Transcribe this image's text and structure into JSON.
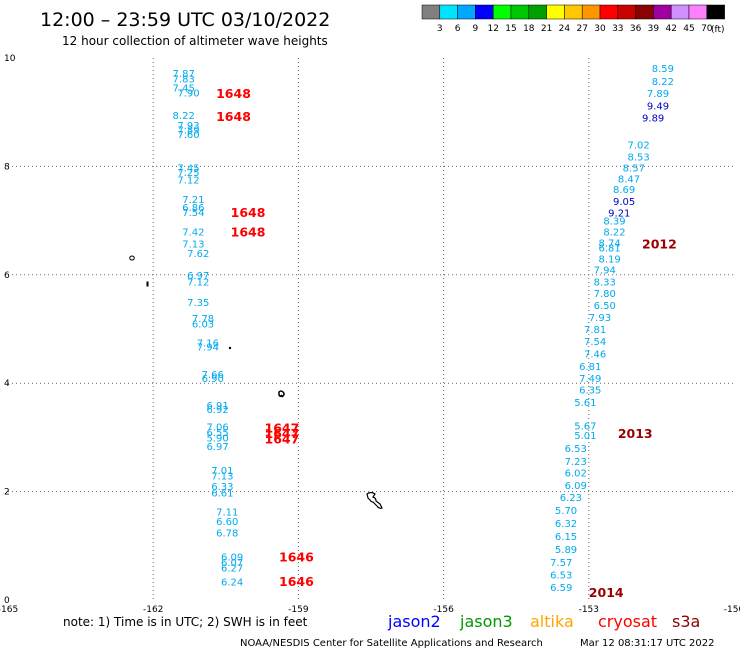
{
  "header": {
    "title": "12:00 – 23:59 UTC 03/10/2022",
    "subtitle": "12 hour collection of altimeter wave heights"
  },
  "colorbar": {
    "unit": "(ft)",
    "ticks": [
      "3",
      "6",
      "9",
      "12",
      "15",
      "18",
      "21",
      "24",
      "27",
      "30",
      "33",
      "36",
      "39",
      "42",
      "45",
      "70"
    ],
    "colors": [
      "#808080",
      "#00e5ff",
      "#00a8ff",
      "#0000ff",
      "#00ff00",
      "#00c800",
      "#00a000",
      "#ffff00",
      "#ffc800",
      "#ff9600",
      "#ff0000",
      "#c80000",
      "#8b0000",
      "#a000a0",
      "#d090ff",
      "#ff80ff",
      "#000000"
    ]
  },
  "footer": {
    "note": "note: 1) Time is in UTC; 2) SWH is in feet",
    "legend": [
      {
        "label": "jason2",
        "color": "#0000ff"
      },
      {
        "label": "jason3",
        "color": "#009900"
      },
      {
        "label": "altika",
        "color": "#ffa500"
      },
      {
        "label": "cryosat",
        "color": "#ff0000"
      },
      {
        "label": "s3a",
        "color": "#8b0000"
      }
    ],
    "credit": "NOAA/NESDIS Center for Satellite Applications and Research",
    "timestamp": "Mar 12 08:31:17 UTC 2022"
  },
  "chart_data": {
    "type": "scatter",
    "title": "12:00 – 23:59 UTC 03/10/2022",
    "subtitle": "12 hour collection of altimeter wave heights",
    "xlim": [
      -165,
      -150
    ],
    "ylim": [
      0,
      10
    ],
    "xticks": [
      "-165",
      "-162",
      "-159",
      "-156",
      "-153",
      "-150"
    ],
    "yticks": [
      "0",
      "2",
      "4",
      "6",
      "8",
      "10"
    ],
    "grid": true,
    "series": [
      {
        "color": "#00aaee",
        "points": [
          {
            "x": -161.6,
            "y": 9.72,
            "v": "7.87"
          },
          {
            "x": -161.6,
            "y": 9.62,
            "v": "7.83"
          },
          {
            "x": -161.6,
            "y": 9.46,
            "v": "7.45"
          },
          {
            "x": -161.5,
            "y": 9.36,
            "v": "7.90"
          },
          {
            "x": -161.6,
            "y": 8.95,
            "v": "8.22"
          },
          {
            "x": -161.5,
            "y": 8.76,
            "v": "7.93"
          },
          {
            "x": -161.5,
            "y": 8.68,
            "v": "7.89"
          },
          {
            "x": -161.5,
            "y": 8.6,
            "v": "7.60"
          },
          {
            "x": -161.5,
            "y": 7.98,
            "v": "7.45"
          },
          {
            "x": -161.5,
            "y": 7.9,
            "v": "7.25"
          },
          {
            "x": -161.5,
            "y": 7.76,
            "v": "7.12"
          },
          {
            "x": -161.4,
            "y": 7.4,
            "v": "7.21"
          },
          {
            "x": -161.4,
            "y": 7.25,
            "v": "6.86"
          },
          {
            "x": -161.4,
            "y": 7.16,
            "v": "7.54"
          },
          {
            "x": -161.4,
            "y": 6.8,
            "v": "7.42"
          },
          {
            "x": -161.4,
            "y": 6.58,
            "v": "7.13"
          },
          {
            "x": -161.3,
            "y": 6.4,
            "v": "7.62"
          },
          {
            "x": -161.3,
            "y": 6.0,
            "v": "6.97"
          },
          {
            "x": -161.3,
            "y": 5.88,
            "v": "7.12"
          },
          {
            "x": -161.3,
            "y": 5.5,
            "v": "7.35"
          },
          {
            "x": -161.2,
            "y": 5.2,
            "v": "7.78"
          },
          {
            "x": -161.2,
            "y": 5.1,
            "v": "6.03"
          },
          {
            "x": -161.1,
            "y": 4.75,
            "v": "7.16"
          },
          {
            "x": -161.1,
            "y": 4.68,
            "v": "7.94"
          },
          {
            "x": -161.0,
            "y": 4.17,
            "v": "7.66"
          },
          {
            "x": -161.0,
            "y": 4.1,
            "v": "6.90"
          },
          {
            "x": -160.9,
            "y": 3.6,
            "v": "6.91"
          },
          {
            "x": -160.9,
            "y": 3.52,
            "v": "6.92"
          },
          {
            "x": -160.9,
            "y": 3.2,
            "v": "7.06"
          },
          {
            "x": -160.9,
            "y": 3.1,
            "v": "6.55"
          },
          {
            "x": -160.9,
            "y": 3.0,
            "v": "5.90"
          },
          {
            "x": -160.9,
            "y": 2.84,
            "v": "6.97"
          },
          {
            "x": -160.8,
            "y": 2.4,
            "v": "7.01"
          },
          {
            "x": -160.8,
            "y": 2.3,
            "v": "7.13"
          },
          {
            "x": -160.8,
            "y": 2.1,
            "v": "6.33"
          },
          {
            "x": -160.8,
            "y": 1.98,
            "v": "6.61"
          },
          {
            "x": -160.7,
            "y": 1.63,
            "v": "7.11"
          },
          {
            "x": -160.7,
            "y": 1.46,
            "v": "6.60"
          },
          {
            "x": -160.7,
            "y": 1.25,
            "v": "6.78"
          },
          {
            "x": -160.6,
            "y": 0.8,
            "v": "6.09"
          },
          {
            "x": -160.6,
            "y": 0.7,
            "v": "6.07"
          },
          {
            "x": -160.6,
            "y": 0.6,
            "v": "6.27"
          },
          {
            "x": -160.6,
            "y": 0.34,
            "v": "6.24"
          },
          {
            "x": -151.7,
            "y": 9.82,
            "v": "8.59"
          },
          {
            "x": -151.7,
            "y": 9.58,
            "v": "8.22"
          },
          {
            "x": -151.8,
            "y": 9.35,
            "v": "7.89"
          },
          {
            "x": -152.2,
            "y": 8.4,
            "v": "7.02"
          },
          {
            "x": -152.2,
            "y": 8.18,
            "v": "8.53"
          },
          {
            "x": -152.3,
            "y": 7.98,
            "v": "8.57"
          },
          {
            "x": -152.4,
            "y": 7.78,
            "v": "8.47"
          },
          {
            "x": -152.5,
            "y": 7.58,
            "v": "8.69"
          },
          {
            "x": -152.7,
            "y": 7.0,
            "v": "8.39"
          },
          {
            "x": -152.7,
            "y": 6.8,
            "v": "8.22"
          },
          {
            "x": -152.8,
            "y": 6.6,
            "v": "8.74"
          },
          {
            "x": -152.8,
            "y": 6.5,
            "v": "6.81"
          },
          {
            "x": -152.8,
            "y": 6.3,
            "v": "8.19"
          },
          {
            "x": -152.9,
            "y": 6.1,
            "v": "7.94"
          },
          {
            "x": -152.9,
            "y": 5.88,
            "v": "8.33"
          },
          {
            "x": -152.9,
            "y": 5.66,
            "v": "7.80"
          },
          {
            "x": -152.9,
            "y": 5.44,
            "v": "6.50"
          },
          {
            "x": -153.0,
            "y": 5.22,
            "v": "7.93"
          },
          {
            "x": -153.1,
            "y": 5.0,
            "v": "7.81"
          },
          {
            "x": -153.1,
            "y": 4.78,
            "v": "7.54"
          },
          {
            "x": -153.1,
            "y": 4.55,
            "v": "7.46"
          },
          {
            "x": -153.2,
            "y": 4.32,
            "v": "6.81"
          },
          {
            "x": -153.2,
            "y": 4.1,
            "v": "7.49"
          },
          {
            "x": -153.2,
            "y": 3.88,
            "v": "6.35"
          },
          {
            "x": -153.3,
            "y": 3.65,
            "v": "5.61"
          },
          {
            "x": -153.3,
            "y": 3.22,
            "v": "5.67"
          },
          {
            "x": -153.3,
            "y": 3.04,
            "v": "5.01"
          },
          {
            "x": -153.5,
            "y": 2.8,
            "v": "6.53"
          },
          {
            "x": -153.5,
            "y": 2.56,
            "v": "7.23"
          },
          {
            "x": -153.5,
            "y": 2.35,
            "v": "6.02"
          },
          {
            "x": -153.5,
            "y": 2.12,
            "v": "6.09"
          },
          {
            "x": -153.6,
            "y": 1.9,
            "v": "6.23"
          },
          {
            "x": -153.7,
            "y": 1.66,
            "v": "5.70"
          },
          {
            "x": -153.7,
            "y": 1.42,
            "v": "6.32"
          },
          {
            "x": -153.7,
            "y": 1.18,
            "v": "6.15"
          },
          {
            "x": -153.7,
            "y": 0.94,
            "v": "5.89"
          },
          {
            "x": -153.8,
            "y": 0.7,
            "v": "7.57"
          },
          {
            "x": -153.8,
            "y": 0.47,
            "v": "6.53"
          },
          {
            "x": -153.8,
            "y": 0.24,
            "v": "6.59"
          }
        ]
      },
      {
        "color": "#0000cc",
        "points": [
          {
            "x": -151.8,
            "y": 9.12,
            "v": "9.49"
          },
          {
            "x": -151.9,
            "y": 8.9,
            "v": "9.89"
          },
          {
            "x": -152.5,
            "y": 7.36,
            "v": "9.05"
          },
          {
            "x": -152.6,
            "y": 7.15,
            "v": "9.21"
          }
        ]
      }
    ],
    "time_labels": [
      {
        "x": -160.7,
        "y": 9.35,
        "t": "1648",
        "color": "#ff0000"
      },
      {
        "x": -160.7,
        "y": 8.93,
        "t": "1648",
        "color": "#ff0000"
      },
      {
        "x": -160.4,
        "y": 7.16,
        "t": "1648",
        "color": "#ff0000"
      },
      {
        "x": -160.4,
        "y": 6.8,
        "t": "1648",
        "color": "#ff0000"
      },
      {
        "x": -159.7,
        "y": 3.18,
        "t": "1647",
        "color": "#ff0000"
      },
      {
        "x": -159.7,
        "y": 3.08,
        "t": "1647",
        "color": "#ff0000"
      },
      {
        "x": -159.7,
        "y": 2.98,
        "t": "1647",
        "color": "#ff0000"
      },
      {
        "x": -159.4,
        "y": 0.8,
        "t": "1646",
        "color": "#ff0000"
      },
      {
        "x": -159.4,
        "y": 0.35,
        "t": "1646",
        "color": "#ff0000"
      },
      {
        "x": -151.9,
        "y": 6.58,
        "t": "2012",
        "color": "#990000"
      },
      {
        "x": -152.4,
        "y": 3.08,
        "t": "2013",
        "color": "#990000"
      },
      {
        "x": -153.0,
        "y": 0.15,
        "t": "2014",
        "color": "#990000"
      }
    ]
  }
}
